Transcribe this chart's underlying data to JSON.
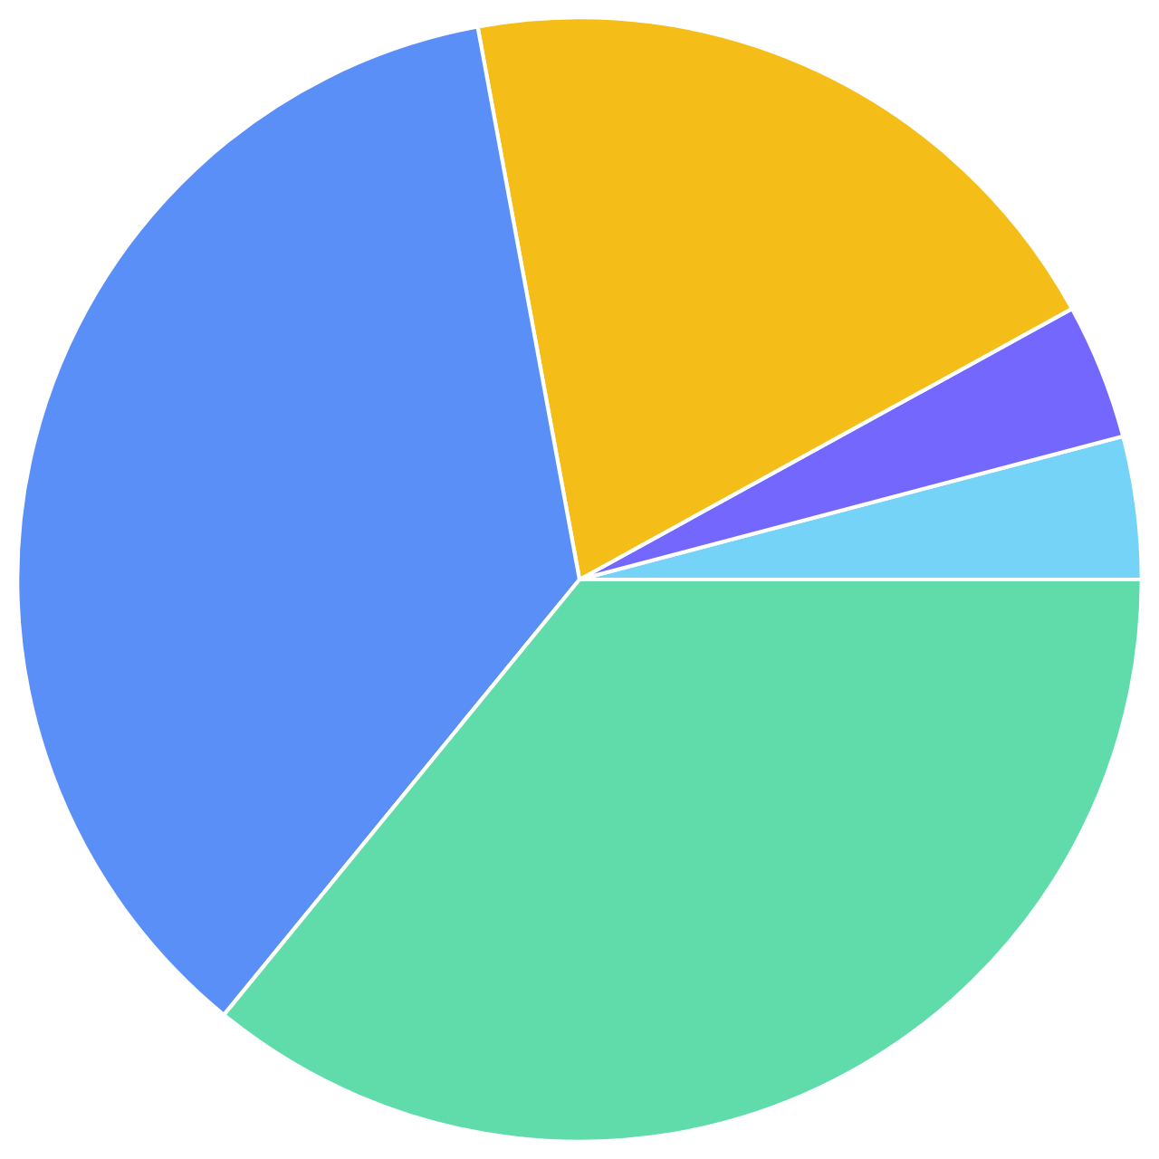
{
  "chart_data": {
    "type": "pie",
    "categories": [
      null,
      null,
      null,
      null,
      null
    ],
    "values": [
      4.1,
      3.9,
      19.9,
      36.2,
      35.9
    ],
    "colors": [
      "#75d3f8",
      "#7367fd",
      "#f5bd17",
      "#5a8ff8",
      "#60dcab"
    ]
  }
}
